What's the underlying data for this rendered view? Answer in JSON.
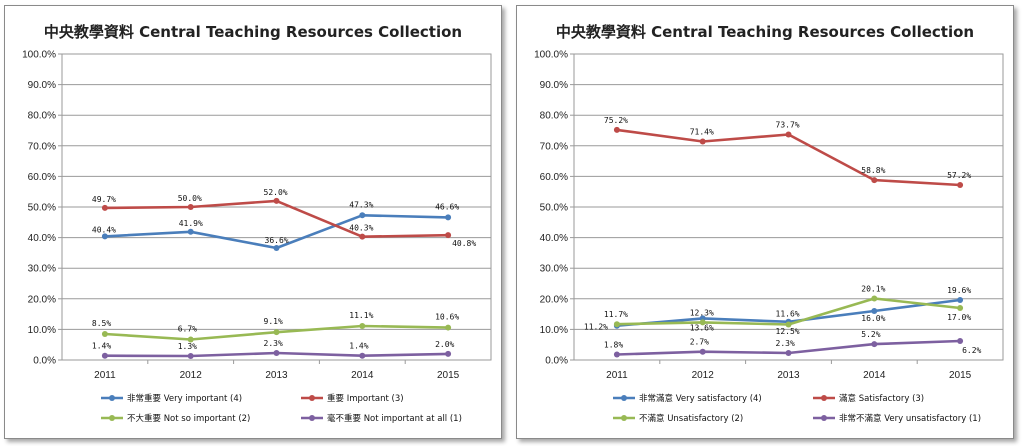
{
  "chart_data": [
    {
      "type": "line",
      "title": "中央教學資料 Central Teaching Resources Collection",
      "x": [
        "2011",
        "2012",
        "2013",
        "2014",
        "2015"
      ],
      "ylim": [
        0,
        100
      ],
      "yticks": [
        "0.0%",
        "10.0%",
        "20.0%",
        "30.0%",
        "40.0%",
        "50.0%",
        "60.0%",
        "70.0%",
        "80.0%",
        "90.0%",
        "100.0%"
      ],
      "grid": true,
      "legend": "bottom",
      "series": [
        {
          "name": "非常重要 Very important (4)",
          "color": "#4a7ebb",
          "values": [
            40.4,
            41.9,
            36.6,
            47.3,
            46.6
          ],
          "labels": [
            "40.4%",
            "41.9%",
            "36.6%",
            "47.3%",
            "46.6%"
          ]
        },
        {
          "name": "重要 Important (3)",
          "color": "#be4b48",
          "values": [
            49.7,
            50.0,
            52.0,
            40.3,
            40.8
          ],
          "labels": [
            "49.7%",
            "50.0%",
            "52.0%",
            "40.3%",
            "40.8%"
          ]
        },
        {
          "name": "不大重要 Not so important (2)",
          "color": "#98b954",
          "values": [
            8.5,
            6.7,
            9.1,
            11.1,
            10.6
          ],
          "labels": [
            "8.5%",
            "6.7%",
            "9.1%",
            "11.1%",
            "10.6%"
          ]
        },
        {
          "name": "毫不重要 Not important at all (1)",
          "color": "#7d60a0",
          "values": [
            1.4,
            1.3,
            2.3,
            1.4,
            2.0
          ],
          "labels": [
            "1.4%",
            "1.3%",
            "2.3%",
            "1.4%",
            "2.0%"
          ]
        }
      ]
    },
    {
      "type": "line",
      "title": "中央教學資料 Central Teaching Resources Collection",
      "x": [
        "2011",
        "2012",
        "2013",
        "2014",
        "2015"
      ],
      "ylim": [
        0,
        100
      ],
      "yticks": [
        "0.0%",
        "10.0%",
        "20.0%",
        "30.0%",
        "40.0%",
        "50.0%",
        "60.0%",
        "70.0%",
        "80.0%",
        "90.0%",
        "100.0%"
      ],
      "grid": true,
      "legend": "bottom",
      "series": [
        {
          "name": "非常滿意 Very satisfactory (4)",
          "color": "#4a7ebb",
          "values": [
            11.2,
            13.6,
            12.5,
            16.0,
            19.6
          ],
          "labels": [
            "11.2%",
            "13.6%",
            "12.5%",
            "16.0%",
            "19.6%"
          ]
        },
        {
          "name": "滿意 Satisfactory (3)",
          "color": "#be4b48",
          "values": [
            75.2,
            71.4,
            73.7,
            58.8,
            57.2
          ],
          "labels": [
            "75.2%",
            "71.4%",
            "73.7%",
            "58.8%",
            "57.2%"
          ]
        },
        {
          "name": "不滿意 Unsatisfactory (2)",
          "color": "#98b954",
          "values": [
            11.7,
            12.3,
            11.6,
            20.1,
            17.0
          ],
          "labels": [
            "11.7%",
            "12.3%",
            "11.6%",
            "20.1%",
            "17.0%"
          ]
        },
        {
          "name": "非常不滿意 Very unsatisfactory (1)",
          "color": "#7d60a0",
          "values": [
            1.8,
            2.7,
            2.3,
            5.2,
            6.2
          ],
          "labels": [
            "1.8%",
            "2.7%",
            "2.3%",
            "5.2%",
            "6.2%"
          ]
        }
      ]
    }
  ]
}
